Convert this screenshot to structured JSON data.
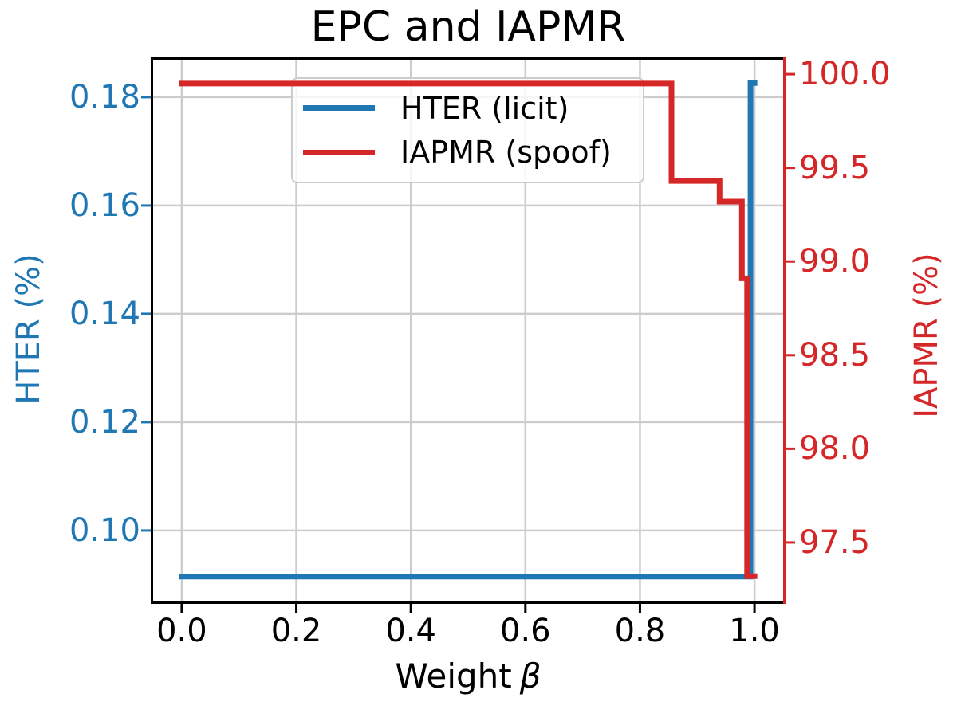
{
  "title": "EPC and IAPMR",
  "xlabel": {
    "text": "Weight",
    "symbol": "β"
  },
  "axis_labels": {
    "left": "HTER (%)",
    "right": "IAPMR (%)"
  },
  "legend": {
    "position": "upper left",
    "items": [
      {
        "label": "HTER (licit)",
        "color": "#1f77b4"
      },
      {
        "label": "IAPMR (spoof)",
        "color": "#d62728"
      }
    ]
  },
  "colors": {
    "blue": "#1f77b4",
    "red": "#d62728",
    "grid": "#cccccc",
    "spine": "#000000",
    "background": "#ffffff"
  },
  "chart_data": {
    "type": "line",
    "title": "EPC and IAPMR",
    "xlabel": "Weight β",
    "ylabel_left": "HTER (%)",
    "ylabel_right": "IAPMR (%)",
    "grid": true,
    "legend_position": "upper left",
    "x_axis": {
      "min": -0.05,
      "max": 1.05,
      "ticks": [
        0.0,
        0.2,
        0.4,
        0.6,
        0.8,
        1.0
      ],
      "tick_labels": [
        "0.0",
        "0.2",
        "0.4",
        "0.6",
        "0.8",
        "1.0"
      ]
    },
    "y_axis_left": {
      "min": 0.0869,
      "max": 0.1869,
      "ticks": [
        0.1,
        0.12,
        0.14,
        0.16,
        0.18
      ],
      "tick_labels": [
        "0.10",
        "0.12",
        "0.14",
        "0.16",
        "0.18"
      ],
      "color": "#1f77b4"
    },
    "y_axis_right": {
      "min": 97.185,
      "max": 100.077,
      "ticks": [
        97.5,
        98.0,
        98.5,
        99.0,
        99.5,
        100.0
      ],
      "tick_labels": [
        "97.5",
        "98.0",
        "98.5",
        "99.0",
        "99.5",
        "100.0"
      ],
      "color": "#d62728"
    },
    "series": [
      {
        "name": "HTER (licit)",
        "axis": "left",
        "color": "#1f77b4",
        "points": [
          [
            0.0,
            0.0915
          ],
          [
            0.993,
            0.0915
          ],
          [
            0.993,
            0.1826
          ],
          [
            1.0,
            0.1826
          ]
        ]
      },
      {
        "name": "IAPMR (spoof)",
        "axis": "right",
        "color": "#d62728",
        "points": [
          [
            0.0,
            99.95
          ],
          [
            0.855,
            99.95
          ],
          [
            0.855,
            99.43
          ],
          [
            0.939,
            99.43
          ],
          [
            0.939,
            99.32
          ],
          [
            0.978,
            99.32
          ],
          [
            0.978,
            98.91
          ],
          [
            0.987,
            98.91
          ],
          [
            0.987,
            97.32
          ],
          [
            1.0,
            97.32
          ]
        ]
      }
    ]
  }
}
